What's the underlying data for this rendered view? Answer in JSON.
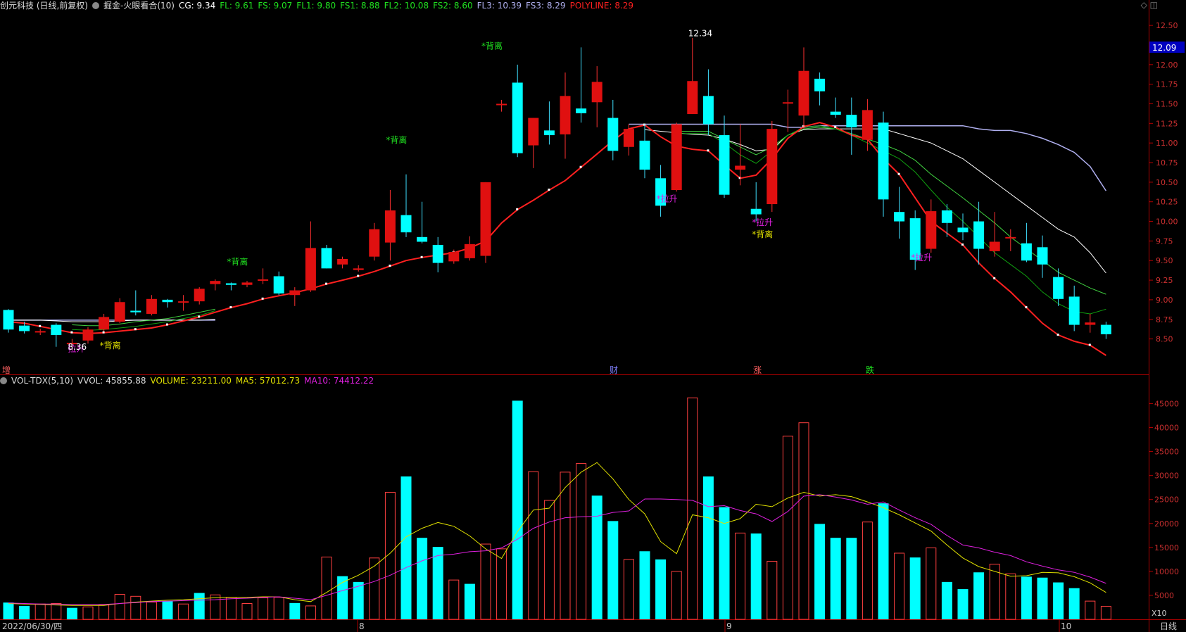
{
  "header": {
    "stock": "创元科技 (日线,前复权)",
    "indicator": "掘金-火眼看合(10)",
    "cg": "CG: 9.34",
    "fl": "FL: 9.61",
    "fs": "FS: 9.07",
    "fl1": "FL1: 9.80",
    "fs1": "FS1: 8.88",
    "fl2": "FL2: 10.08",
    "fs2": "FS2: 8.60",
    "fl3": "FL3: 10.39",
    "fs3": "FS3: 8.29",
    "polyline": "POLYLINE: 8.29"
  },
  "vol_header": {
    "name": "VOL-TDX(5,10)",
    "vvol": "VVOL: 45855.88",
    "volume": "VOLUME: 23211.00",
    "ma5": "MA5: 57012.73",
    "ma10": "MA10: 74412.22"
  },
  "colors": {
    "up": "#e01010",
    "down": "#00ffff",
    "red_line": "#ff2020",
    "white_line": "#ffffff",
    "lavender_line": "#b0b0f0",
    "green_line": "#20c020",
    "ma5": "#e0e000",
    "ma10": "#e020e0",
    "axis": "#b00000"
  },
  "bottom_labels": {
    "date": "2022/06/30/四",
    "m8": "8",
    "m9": "9",
    "m10": "10",
    "period": "日线",
    "x10": "X10"
  },
  "price_tag": "12.09",
  "event_labels": {
    "zeng": "增",
    "cai": "财",
    "zhang": "涨",
    "die": "跌"
  },
  "chart_data": [
    {
      "type": "candlestick",
      "ylim": [
        8.2,
        12.6
      ],
      "yticks": [
        "12.50",
        "12.25",
        "12.00",
        "11.75",
        "11.50",
        "11.25",
        "11.00",
        "10.75",
        "10.50",
        "10.25",
        "10.00",
        "9.75",
        "9.50",
        "9.25",
        "9.00",
        "8.75",
        "8.50"
      ],
      "candles": [
        {
          "o": 8.87,
          "c": 8.62,
          "h": 8.88,
          "l": 8.58
        },
        {
          "o": 8.67,
          "c": 8.6,
          "h": 8.72,
          "l": 8.57
        },
        {
          "o": 8.6,
          "c": 8.6,
          "h": 8.63,
          "l": 8.55
        },
        {
          "o": 8.68,
          "c": 8.55,
          "h": 8.7,
          "l": 8.4
        },
        {
          "o": 8.45,
          "c": 8.45,
          "h": 8.5,
          "l": 8.36
        },
        {
          "o": 8.48,
          "c": 8.62,
          "h": 8.65,
          "l": 8.44
        },
        {
          "o": 8.62,
          "c": 8.78,
          "h": 8.82,
          "l": 8.6
        },
        {
          "o": 8.72,
          "c": 8.97,
          "h": 9.02,
          "l": 8.7
        },
        {
          "o": 8.86,
          "c": 8.84,
          "h": 9.12,
          "l": 8.8
        },
        {
          "o": 8.82,
          "c": 9.01,
          "h": 9.06,
          "l": 8.8
        },
        {
          "o": 9.0,
          "c": 8.97,
          "h": 9.01,
          "l": 8.9
        },
        {
          "o": 8.98,
          "c": 8.98,
          "h": 9.06,
          "l": 8.86
        },
        {
          "o": 8.98,
          "c": 9.14,
          "h": 9.16,
          "l": 8.94
        },
        {
          "o": 9.2,
          "c": 9.24,
          "h": 9.26,
          "l": 9.12
        },
        {
          "o": 9.21,
          "c": 9.19,
          "h": 9.22,
          "l": 9.12
        },
        {
          "o": 9.19,
          "c": 9.22,
          "h": 9.24,
          "l": 9.16
        },
        {
          "o": 9.26,
          "c": 9.26,
          "h": 9.4,
          "l": 9.2
        },
        {
          "o": 9.3,
          "c": 9.08,
          "h": 9.36,
          "l": 9.06
        },
        {
          "o": 9.06,
          "c": 9.12,
          "h": 9.16,
          "l": 8.92
        },
        {
          "o": 9.12,
          "c": 9.66,
          "h": 10.0,
          "l": 9.1
        },
        {
          "o": 9.66,
          "c": 9.4,
          "h": 9.7,
          "l": 9.4
        },
        {
          "o": 9.45,
          "c": 9.52,
          "h": 9.55,
          "l": 9.4
        },
        {
          "o": 9.38,
          "c": 9.4,
          "h": 9.44,
          "l": 9.36
        },
        {
          "o": 9.55,
          "c": 9.9,
          "h": 9.98,
          "l": 9.5
        },
        {
          "o": 9.73,
          "c": 10.14,
          "h": 10.4,
          "l": 9.5
        },
        {
          "o": 10.08,
          "c": 9.86,
          "h": 10.6,
          "l": 9.8
        },
        {
          "o": 9.8,
          "c": 9.74,
          "h": 10.25,
          "l": 9.72
        },
        {
          "o": 9.7,
          "c": 9.47,
          "h": 9.8,
          "l": 9.35
        },
        {
          "o": 9.49,
          "c": 9.61,
          "h": 9.64,
          "l": 9.46
        },
        {
          "o": 9.53,
          "c": 9.71,
          "h": 9.81,
          "l": 9.5
        },
        {
          "o": 9.56,
          "c": 10.5,
          "h": 10.5,
          "l": 9.47
        },
        {
          "o": 11.5,
          "c": 11.5,
          "h": 11.55,
          "l": 11.4
        },
        {
          "o": 11.77,
          "c": 10.87,
          "h": 12.0,
          "l": 10.82
        },
        {
          "o": 10.97,
          "c": 11.32,
          "h": 11.32,
          "l": 10.68
        },
        {
          "o": 11.16,
          "c": 11.1,
          "h": 11.53,
          "l": 10.98
        },
        {
          "o": 11.11,
          "c": 11.6,
          "h": 11.9,
          "l": 10.8
        },
        {
          "o": 11.44,
          "c": 11.38,
          "h": 12.22,
          "l": 11.26
        },
        {
          "o": 11.52,
          "c": 11.78,
          "h": 11.98,
          "l": 11.2
        },
        {
          "o": 11.32,
          "c": 10.9,
          "h": 11.55,
          "l": 10.78
        },
        {
          "o": 10.95,
          "c": 11.18,
          "h": 11.24,
          "l": 10.84
        },
        {
          "o": 11.03,
          "c": 10.66,
          "h": 11.24,
          "l": 10.55
        },
        {
          "o": 10.55,
          "c": 10.2,
          "h": 10.72,
          "l": 10.06
        },
        {
          "o": 10.4,
          "c": 11.24,
          "h": 11.26,
          "l": 10.38
        },
        {
          "o": 11.37,
          "c": 11.79,
          "h": 12.34,
          "l": 11.37
        },
        {
          "o": 11.6,
          "c": 11.24,
          "h": 11.94,
          "l": 11.1
        },
        {
          "o": 11.1,
          "c": 10.34,
          "h": 11.35,
          "l": 10.3
        },
        {
          "o": 10.66,
          "c": 10.71,
          "h": 11.24,
          "l": 10.46
        },
        {
          "o": 10.16,
          "c": 10.09,
          "h": 10.5,
          "l": 10.0
        },
        {
          "o": 10.22,
          "c": 11.18,
          "h": 11.28,
          "l": 10.12
        },
        {
          "o": 11.52,
          "c": 11.52,
          "h": 11.68,
          "l": 11.14
        },
        {
          "o": 11.35,
          "c": 11.92,
          "h": 12.22,
          "l": 11.18
        },
        {
          "o": 11.82,
          "c": 11.66,
          "h": 11.9,
          "l": 11.48
        },
        {
          "o": 11.4,
          "c": 11.36,
          "h": 11.58,
          "l": 11.32
        },
        {
          "o": 11.36,
          "c": 11.2,
          "h": 11.58,
          "l": 10.85
        },
        {
          "o": 11.04,
          "c": 11.42,
          "h": 11.56,
          "l": 10.9
        },
        {
          "o": 11.26,
          "c": 10.28,
          "h": 11.4,
          "l": 10.06
        },
        {
          "o": 10.12,
          "c": 10.0,
          "h": 10.44,
          "l": 9.78
        },
        {
          "o": 10.04,
          "c": 9.51,
          "h": 10.14,
          "l": 9.38
        },
        {
          "o": 9.65,
          "c": 10.13,
          "h": 10.28,
          "l": 9.6
        },
        {
          "o": 10.14,
          "c": 9.98,
          "h": 10.22,
          "l": 9.8
        },
        {
          "o": 9.92,
          "c": 9.86,
          "h": 10.1,
          "l": 9.76
        },
        {
          "o": 10.0,
          "c": 9.65,
          "h": 10.25,
          "l": 9.45
        },
        {
          "o": 9.62,
          "c": 9.74,
          "h": 10.12,
          "l": 9.55
        },
        {
          "o": 9.8,
          "c": 9.8,
          "h": 9.9,
          "l": 9.62
        },
        {
          "o": 9.72,
          "c": 9.5,
          "h": 9.98,
          "l": 9.48
        },
        {
          "o": 9.67,
          "c": 9.45,
          "h": 9.82,
          "l": 9.28
        },
        {
          "o": 9.29,
          "c": 9.01,
          "h": 9.4,
          "l": 8.92
        },
        {
          "o": 9.04,
          "c": 8.68,
          "h": 9.18,
          "l": 8.6
        },
        {
          "o": 8.68,
          "c": 8.71,
          "h": 8.82,
          "l": 8.58
        },
        {
          "o": 8.68,
          "c": 8.56,
          "h": 8.72,
          "l": 8.5
        }
      ],
      "red_line": [
        8.72,
        8.7,
        8.66,
        8.62,
        8.58,
        8.57,
        8.58,
        8.6,
        8.62,
        8.64,
        8.68,
        8.73,
        8.78,
        8.84,
        8.9,
        8.95,
        9.01,
        9.05,
        9.09,
        9.14,
        9.2,
        9.25,
        9.3,
        9.36,
        9.43,
        9.5,
        9.54,
        9.57,
        9.6,
        9.66,
        9.75,
        9.98,
        10.15,
        10.27,
        10.4,
        10.52,
        10.69,
        10.86,
        11.03,
        11.18,
        11.23,
        11.08,
        10.96,
        10.92,
        10.9,
        10.72,
        10.55,
        10.59,
        10.8,
        11.06,
        11.21,
        11.26,
        11.2,
        11.1,
        11.05,
        10.8,
        10.6,
        10.3,
        10.0,
        9.85,
        9.7,
        9.47,
        9.27,
        9.1,
        8.9,
        8.7,
        8.55,
        8.47,
        8.42,
        8.29
      ],
      "green1": [
        null,
        null,
        null,
        null,
        8.62,
        8.61,
        8.62,
        8.64,
        8.66,
        8.69,
        8.72,
        8.76,
        8.8,
        8.86,
        null,
        null,
        null,
        null,
        null,
        null,
        null,
        null,
        null,
        null,
        null,
        null,
        null,
        null,
        null,
        null,
        null,
        null,
        null,
        null,
        null,
        null,
        null,
        null,
        null,
        null,
        null,
        null,
        11.12,
        11.12,
        11.12,
        11.0,
        10.85,
        10.74,
        10.9,
        11.1,
        11.2,
        11.22,
        11.18,
        11.1,
        11.0,
        10.9,
        10.8,
        10.63,
        10.4,
        10.18,
        10.0,
        9.8,
        9.6,
        9.45,
        9.3,
        9.1,
        8.95,
        8.85,
        8.82,
        8.88
      ],
      "green2": [
        null,
        null,
        null,
        null,
        8.68,
        8.67,
        8.67,
        8.69,
        8.72,
        8.74,
        8.76,
        8.8,
        8.84,
        8.88,
        null,
        null,
        null,
        null,
        null,
        null,
        null,
        null,
        null,
        null,
        null,
        null,
        null,
        null,
        null,
        null,
        null,
        null,
        null,
        null,
        null,
        null,
        null,
        null,
        null,
        null,
        null,
        null,
        11.15,
        11.15,
        11.15,
        11.05,
        10.95,
        10.85,
        10.95,
        11.1,
        11.18,
        11.2,
        11.18,
        11.12,
        11.05,
        10.98,
        10.9,
        10.78,
        10.6,
        10.45,
        10.3,
        10.14,
        9.98,
        9.8,
        9.65,
        9.5,
        9.35,
        9.25,
        9.15,
        9.07
      ],
      "white_line": [
        8.74,
        8.74,
        8.74,
        8.73,
        8.72,
        8.72,
        8.72,
        8.73,
        8.74,
        8.74,
        8.74,
        8.74,
        8.74,
        8.75,
        null,
        null,
        null,
        null,
        null,
        null,
        null,
        null,
        null,
        null,
        null,
        null,
        null,
        null,
        null,
        null,
        null,
        null,
        null,
        null,
        null,
        null,
        null,
        null,
        null,
        null,
        11.17,
        11.15,
        11.13,
        11.11,
        11.1,
        11.05,
        10.98,
        10.9,
        10.92,
        11.1,
        11.17,
        11.18,
        11.18,
        11.18,
        11.18,
        11.18,
        11.12,
        11.06,
        11.0,
        10.9,
        10.8,
        10.65,
        10.5,
        10.35,
        10.2,
        10.05,
        9.9,
        9.8,
        9.6,
        9.34
      ],
      "lavender_line": [
        8.74,
        8.74,
        8.74,
        8.74,
        8.74,
        8.74,
        8.74,
        8.74,
        8.74,
        8.74,
        8.74,
        8.74,
        8.74,
        8.74,
        null,
        null,
        null,
        null,
        null,
        null,
        null,
        null,
        null,
        null,
        null,
        null,
        null,
        null,
        null,
        null,
        null,
        null,
        null,
        null,
        null,
        null,
        null,
        null,
        null,
        11.24,
        11.24,
        11.24,
        11.24,
        11.24,
        11.24,
        11.24,
        11.24,
        11.24,
        11.24,
        11.2,
        11.2,
        11.22,
        11.22,
        11.22,
        11.22,
        11.22,
        11.22,
        11.22,
        11.22,
        11.22,
        11.22,
        11.18,
        11.16,
        11.16,
        11.12,
        11.06,
        10.98,
        10.88,
        10.7,
        10.39
      ],
      "annotations": [
        {
          "i": 30,
          "text": "*背离",
          "y": 12.2,
          "color": "#20e020"
        },
        {
          "i": 24,
          "text": "*背离",
          "y": 11.0,
          "color": "#20e020"
        },
        {
          "i": 14,
          "text": "*背离",
          "y": 9.45,
          "color": "#20e020"
        },
        {
          "i": 6,
          "text": "*背离",
          "y": 8.38,
          "color": "#e0e000"
        },
        {
          "i": 41,
          "text": "*拉升",
          "y": 10.25,
          "color": "#e020e0"
        },
        {
          "i": 47,
          "text": "*拉升",
          "y": 9.95,
          "color": "#e020e0"
        },
        {
          "i": 47,
          "text": "*背离",
          "y": 9.8,
          "color": "#e0e000"
        },
        {
          "i": 57,
          "text": "*拉升",
          "y": 9.5,
          "color": "#e020e0"
        },
        {
          "i": 4,
          "text": "拉升",
          "y": 8.34,
          "color": "#e020e0"
        },
        {
          "i": 43,
          "text": "12.34",
          "y": 12.36,
          "color": "#ffffff"
        },
        {
          "i": 4,
          "text": "8.36",
          "y": 8.36,
          "color": "#ffffff"
        }
      ]
    },
    {
      "type": "bar",
      "ylim": [
        0,
        48000
      ],
      "yticks": [
        "45000",
        "40000",
        "35000",
        "30000",
        "25000",
        "20000",
        "15000",
        "10000",
        "5000"
      ],
      "volumes": [
        3500,
        2800,
        3200,
        3300,
        2400,
        2600,
        3000,
        5200,
        4800,
        3600,
        3800,
        3200,
        5500,
        5100,
        4600,
        3300,
        4500,
        4600,
        3400,
        2800,
        13000,
        9000,
        7800,
        12800,
        26500,
        29800,
        17000,
        15100,
        8200,
        7400,
        15700,
        14700,
        45600,
        30800,
        24800,
        30700,
        32500,
        25800,
        20500,
        12500,
        14200,
        12500,
        10000,
        46200,
        29800,
        23400,
        18000,
        17900,
        12100,
        38200,
        41000,
        19900,
        17000,
        17000,
        20300,
        24200,
        13800,
        12900,
        14900,
        7800,
        6300,
        9800,
        11500,
        9500,
        8900,
        8700,
        7700,
        6500,
        3800,
        2700
      ],
      "ma5": [
        3300,
        3200,
        3100,
        3000,
        2900,
        2900,
        2900,
        3300,
        3600,
        3800,
        4000,
        4100,
        4300,
        4500,
        4600,
        4600,
        4700,
        4700,
        4100,
        3700,
        5600,
        7700,
        9200,
        11100,
        13800,
        17200,
        19000,
        20200,
        19400,
        17400,
        14700,
        12700,
        18300,
        22800,
        23200,
        27500,
        30700,
        32700,
        29300,
        25000,
        22000,
        16200,
        13700,
        21800,
        21200,
        20000,
        21000,
        24000,
        23500,
        25300,
        26500,
        25700,
        26000,
        25600,
        24500,
        23300,
        21800,
        20100,
        18400,
        15500,
        12800,
        11000,
        10000,
        9000,
        9100,
        9800,
        9700,
        8900,
        7600,
        5600
      ],
      "ma10": [
        3400,
        3300,
        3200,
        3200,
        3100,
        3100,
        3100,
        3300,
        3500,
        3700,
        3800,
        3900,
        4000,
        4100,
        4300,
        4400,
        4600,
        4700,
        4400,
        4100,
        5000,
        6000,
        6900,
        7900,
        9200,
        10800,
        12200,
        13300,
        13600,
        14100,
        14300,
        14900,
        16700,
        19000,
        20300,
        21200,
        21400,
        21500,
        22300,
        22600,
        25100,
        25100,
        25000,
        24800,
        23500,
        23700,
        22700,
        22000,
        20400,
        22500,
        25700,
        26000,
        25500,
        24900,
        24000,
        24500,
        22800,
        21200,
        19800,
        17500,
        15500,
        14900,
        14000,
        13300,
        12000,
        11100,
        10300,
        9800,
        8800,
        7500
      ],
      "up_days": [
        0,
        0,
        1,
        1,
        0,
        1,
        1,
        1,
        1,
        1,
        0,
        1,
        0,
        1,
        1,
        1,
        1,
        1,
        0,
        1,
        1,
        0,
        0,
        1,
        1,
        0,
        0,
        0,
        1,
        0,
        1,
        1,
        0,
        1,
        1,
        1,
        1,
        0,
        0,
        1,
        0,
        0,
        1,
        1,
        0,
        0,
        1,
        0,
        1,
        1,
        1,
        0,
        0,
        0,
        1,
        0,
        1,
        0,
        1,
        0,
        0,
        0,
        1,
        1,
        0,
        0,
        0,
        0,
        1,
        1
      ]
    }
  ]
}
